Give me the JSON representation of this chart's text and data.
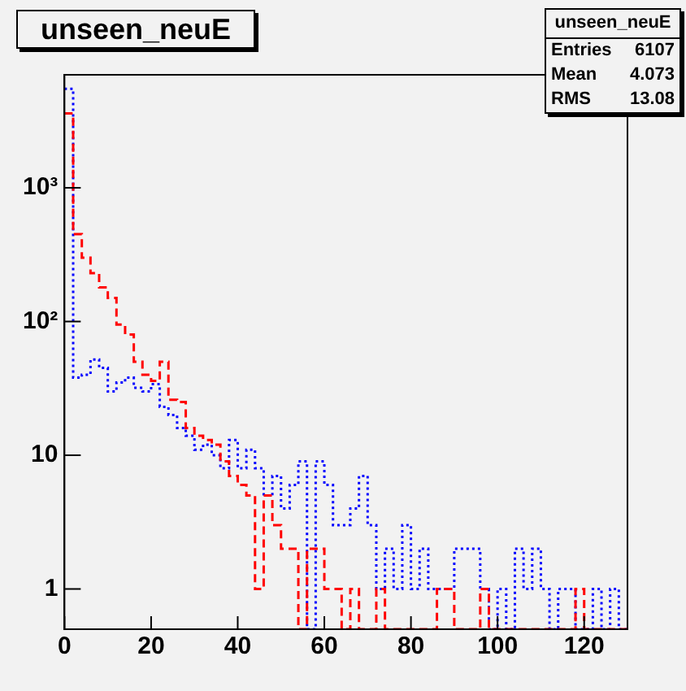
{
  "chart_data": {
    "type": "histogram",
    "title": "unseen_neuE",
    "annotations": [
      "unseen_neuE",
      "Entries",
      "6107",
      "Mean",
      "4.073",
      "RMS",
      "13.08"
    ],
    "bins": [
      0,
      2,
      4,
      6,
      8,
      10,
      12,
      14,
      16,
      18,
      20,
      22,
      24,
      26,
      28,
      30,
      32,
      34,
      36,
      38,
      40,
      42,
      44,
      46,
      48,
      50,
      52,
      54,
      56,
      58,
      60,
      62,
      64,
      66,
      68,
      70,
      72,
      74,
      76,
      78,
      80,
      82,
      84,
      86,
      88,
      90,
      92,
      94,
      96,
      98,
      100,
      102,
      104,
      106,
      108,
      110,
      112,
      114,
      116,
      118,
      120,
      122,
      124,
      126,
      128,
      130
    ],
    "series": [
      {
        "color": "#ff0000",
        "line_style": "dashed",
        "values": [
          3600,
          450,
          300,
          230,
          180,
          150,
          95,
          80,
          50,
          40,
          36,
          50,
          26,
          25,
          16,
          14,
          13,
          12,
          9,
          7,
          6,
          5,
          1,
          5,
          3,
          2,
          2,
          null,
          2,
          2,
          1,
          1,
          null,
          1,
          null,
          null,
          1,
          null,
          null,
          null,
          null,
          null,
          null,
          1,
          1,
          null,
          null,
          null,
          1,
          null,
          null,
          null,
          null,
          null,
          null,
          null,
          null,
          null,
          null,
          1,
          null,
          null,
          null,
          null,
          null
        ]
      },
      {
        "color": "#0000ff",
        "line_style": "dotted",
        "values": [
          5500,
          38,
          40,
          52,
          45,
          30,
          35,
          38,
          32,
          30,
          34,
          23,
          20,
          16,
          14,
          11,
          12,
          10,
          8,
          13,
          8,
          11,
          8,
          5,
          7,
          4,
          6,
          9,
          null,
          9,
          6,
          3,
          3,
          4,
          7,
          3,
          1,
          2,
          1,
          3,
          1,
          2,
          1,
          1,
          1,
          2,
          2,
          2,
          1,
          null,
          1,
          null,
          2,
          1,
          2,
          1,
          null,
          1,
          1,
          null,
          null,
          1,
          null,
          1,
          null
        ]
      }
    ],
    "xlim": [
      0,
      130
    ],
    "xticks": [
      0,
      20,
      40,
      60,
      80,
      100,
      120
    ],
    "ylim": [
      0.5,
      7000
    ],
    "yticks": [
      {
        "value": 1,
        "label": "1"
      },
      {
        "value": 10,
        "label": "10"
      },
      {
        "value": 100,
        "label": "10²"
      },
      {
        "value": 1000,
        "label": "10³"
      }
    ],
    "log": true,
    "grid": false,
    "legend": false
  }
}
